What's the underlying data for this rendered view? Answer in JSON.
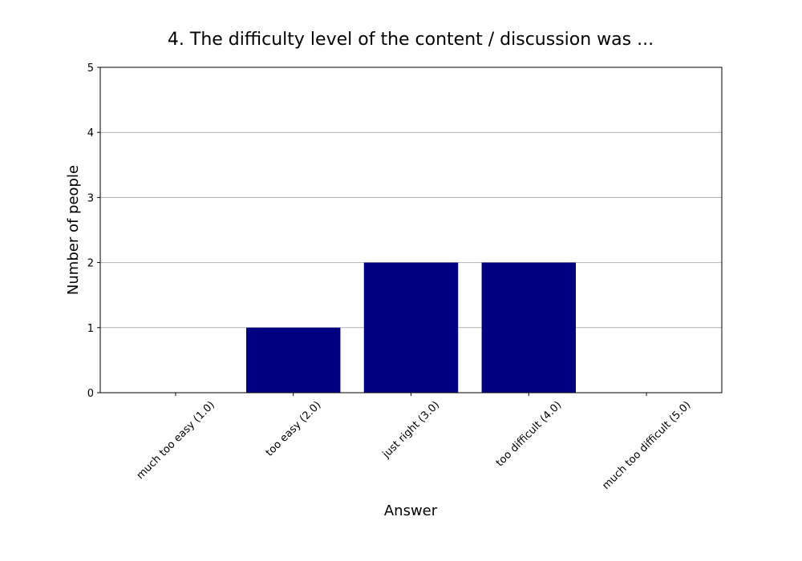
{
  "chart_data": {
    "type": "bar",
    "title": "4. The difficulty level of the content / discussion was ...",
    "x_label": "Answer",
    "y_label": "Number of people",
    "categories": [
      "much too easy (1.0)",
      "too easy (2.0)",
      "just right (3.0)",
      "too difficult (4.0)",
      "much too difficult (5.0)"
    ],
    "values": [
      0,
      1,
      2,
      2,
      0
    ],
    "color": "#000080",
    "ylim": [
      0,
      5
    ],
    "yticks": [
      0,
      1,
      2,
      3,
      4,
      5
    ],
    "grid": true
  }
}
